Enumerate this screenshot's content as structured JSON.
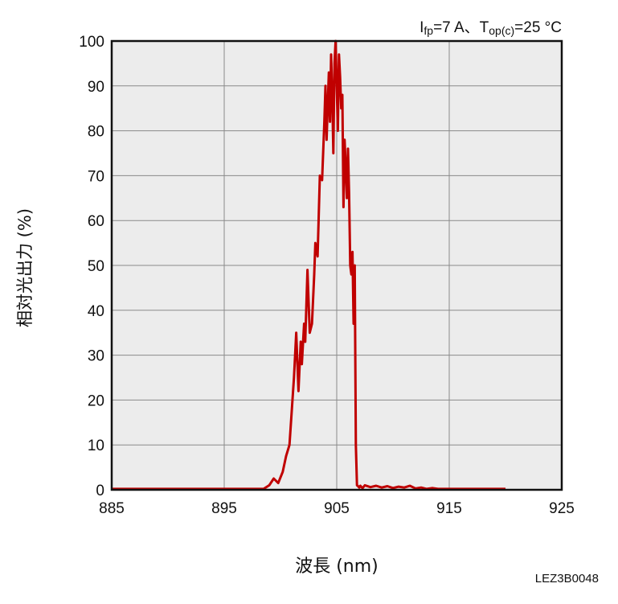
{
  "chart_data": {
    "type": "line",
    "condition": {
      "current_symbol": "I",
      "current_sub": "fp",
      "current_value": "=7 A、",
      "temp_symbol": "T",
      "temp_sub": "op(c)",
      "temp_value": "=25 °C"
    },
    "ylabel": "相対光出力 (%)",
    "xlabel": "波長 (nm)",
    "doc_code": "LEZ3B0048",
    "xlim": [
      885,
      925
    ],
    "ylim": [
      0,
      100
    ],
    "x_ticks": [
      "885",
      "895",
      "905",
      "915",
      "925"
    ],
    "y_ticks": [
      "0",
      "10",
      "20",
      "30",
      "40",
      "50",
      "60",
      "70",
      "80",
      "90",
      "100"
    ],
    "grid": true,
    "line_color": "#c00000",
    "series": [
      {
        "x": [
          885,
          898.5,
          899.0,
          899.4,
          899.8,
          900.2,
          900.5,
          900.8,
          901.2,
          901.4,
          901.6,
          901.8,
          901.9,
          902.1,
          902.2,
          902.4,
          902.6,
          902.8,
          903.0,
          903.1,
          903.3,
          903.5,
          903.7,
          903.9,
          904.0,
          904.1,
          904.3,
          904.4,
          904.5,
          904.6,
          904.7,
          904.8,
          904.9,
          905.0,
          905.1,
          905.2,
          905.3,
          905.4,
          905.5,
          905.6,
          905.7,
          905.8,
          905.9,
          906.0,
          906.1,
          906.2,
          906.3,
          906.4,
          906.5,
          906.6,
          906.7,
          906.8,
          906.9,
          907.0,
          907.1,
          907.2,
          907.3,
          907.5,
          908.0,
          908.5,
          909.0,
          909.5,
          910.0,
          910.5,
          911.0,
          911.5,
          912.0,
          912.5,
          913.0,
          913.5,
          914.0,
          920.0
        ],
        "y": [
          0.2,
          0.2,
          1.0,
          2.5,
          1.5,
          4.0,
          7.5,
          10.0,
          25.0,
          35.0,
          22.0,
          33.0,
          28.0,
          37.0,
          33.0,
          49.0,
          35.0,
          37.0,
          48.0,
          55.0,
          52.0,
          70.0,
          69.0,
          82.0,
          90.0,
          78.0,
          93.0,
          82.0,
          97.0,
          88.0,
          75.0,
          95.0,
          100.0,
          90.0,
          80.0,
          97.0,
          92.0,
          85.0,
          88.0,
          63.0,
          78.0,
          72.0,
          65.0,
          76.0,
          66.0,
          50.0,
          48.0,
          53.0,
          37.0,
          50.0,
          10.0,
          1.0,
          0.8,
          0.5,
          0.9,
          0.6,
          0.4,
          1.0,
          0.6,
          0.9,
          0.5,
          0.8,
          0.4,
          0.7,
          0.5,
          0.9,
          0.3,
          0.5,
          0.2,
          0.4,
          0.2,
          0.2
        ]
      }
    ]
  }
}
